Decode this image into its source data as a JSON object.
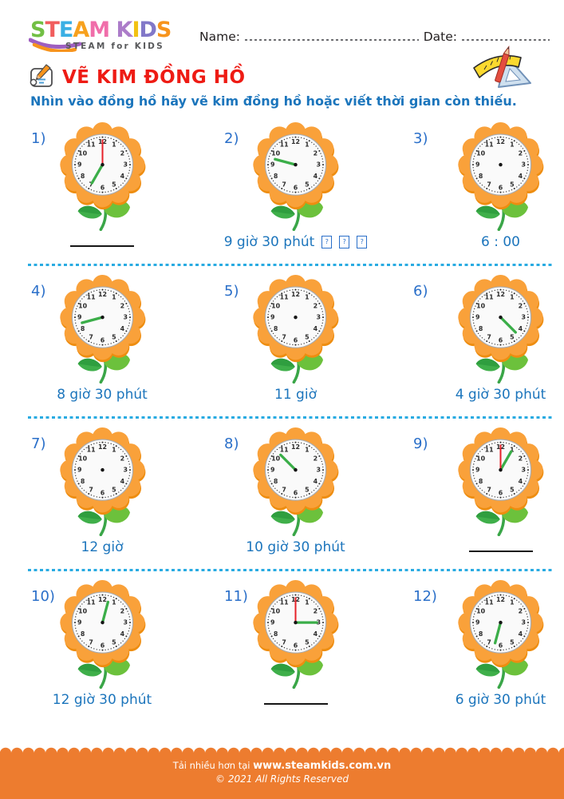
{
  "header": {
    "logo_letters": [
      {
        "ch": "S",
        "color": "#72BF44"
      },
      {
        "ch": "T",
        "color": "#F15D5D"
      },
      {
        "ch": "E",
        "color": "#3AAFE4"
      },
      {
        "ch": "A",
        "color": "#F7A11E"
      },
      {
        "ch": "M",
        "color": "#F06EAA"
      },
      {
        "ch": " ",
        "color": ""
      },
      {
        "ch": "K",
        "color": "#AC7CC9"
      },
      {
        "ch": "I",
        "color": "#F2C113"
      },
      {
        "ch": "D",
        "color": "#8278C8"
      },
      {
        "ch": "S",
        "color": "#F7941D"
      }
    ],
    "logo_subtitle": "STEAM for KIDS",
    "name_label": "Name:",
    "date_label": "Date:"
  },
  "title": "VẼ KIM ĐỒNG HỒ",
  "instruction": "Nhìn vào đồng hồ hãy vẽ kim đồng hồ hoặc viết thời gian còn thiếu.",
  "clock_face": {
    "numbers": [
      "1",
      "2",
      "3",
      "4",
      "5",
      "6",
      "7",
      "8",
      "9",
      "10",
      "11",
      "12"
    ]
  },
  "colors": {
    "petal": "#F9A13A",
    "petal_shadow": "#EE8D10",
    "face": "#FAFAFA",
    "face_border": "#A9ABAE",
    "tick": "#2A2A2A",
    "number": "#2B2B2B",
    "hour_hand": "#3BAE49",
    "minute_hand": "#E62129",
    "stem": "#3AA648",
    "leaf_left": "#3FAF4A",
    "leaf_left_dark": "#2F9E3F",
    "leaf_right": "#6CC13C",
    "label_blue": "#2A6FC9",
    "answer_blue": "#1C75BC",
    "separator_blue": "#29ABE2",
    "title_red": "#EE1B14",
    "footer_orange": "#ED7C2F"
  },
  "clocks": [
    {
      "label": "1)",
      "hour": 7,
      "minute": 0,
      "answer": "",
      "blank": true,
      "tofu": 0
    },
    {
      "label": "2)",
      "hour": 9.5,
      "minute": null,
      "answer": "9 giờ 30 phút",
      "blank": false,
      "tofu": 3
    },
    {
      "label": "3)",
      "hour": null,
      "minute": null,
      "answer": "6 : 00",
      "blank": false,
      "tofu": 0
    },
    {
      "label": "4)",
      "hour": 8.5,
      "minute": null,
      "answer": "8 giờ 30 phút",
      "blank": false,
      "tofu": 0
    },
    {
      "label": "5)",
      "hour": null,
      "minute": null,
      "answer": "11 giờ",
      "blank": false,
      "tofu": 0
    },
    {
      "label": "6)",
      "hour": 4.5,
      "minute": null,
      "answer": "4 giờ 30 phút",
      "blank": false,
      "tofu": 0
    },
    {
      "label": "7)",
      "hour": null,
      "minute": null,
      "answer": "12 giờ",
      "blank": false,
      "tofu": 0
    },
    {
      "label": "8)",
      "hour": 10.5,
      "minute": null,
      "answer": "10 giờ 30 phút",
      "blank": false,
      "tofu": 0
    },
    {
      "label": "9)",
      "hour": 1,
      "minute": 0,
      "answer": "",
      "blank": true,
      "tofu": 0
    },
    {
      "label": "10)",
      "hour": 12.5,
      "minute": null,
      "answer": "12 giờ 30 phút",
      "blank": false,
      "tofu": 0
    },
    {
      "label": "11)",
      "hour": 3,
      "minute": 0,
      "answer": "",
      "blank": true,
      "tofu": 0
    },
    {
      "label": "12)",
      "hour": 6.5,
      "minute": null,
      "answer": "6 giờ 30 phút",
      "blank": false,
      "tofu": 0
    }
  ],
  "footer": {
    "line1_prefix": "Tải nhiều hơn tại ",
    "line1_url": "www.steamkids.com.vn",
    "line2": "© 2021 All Rights Reserved"
  }
}
